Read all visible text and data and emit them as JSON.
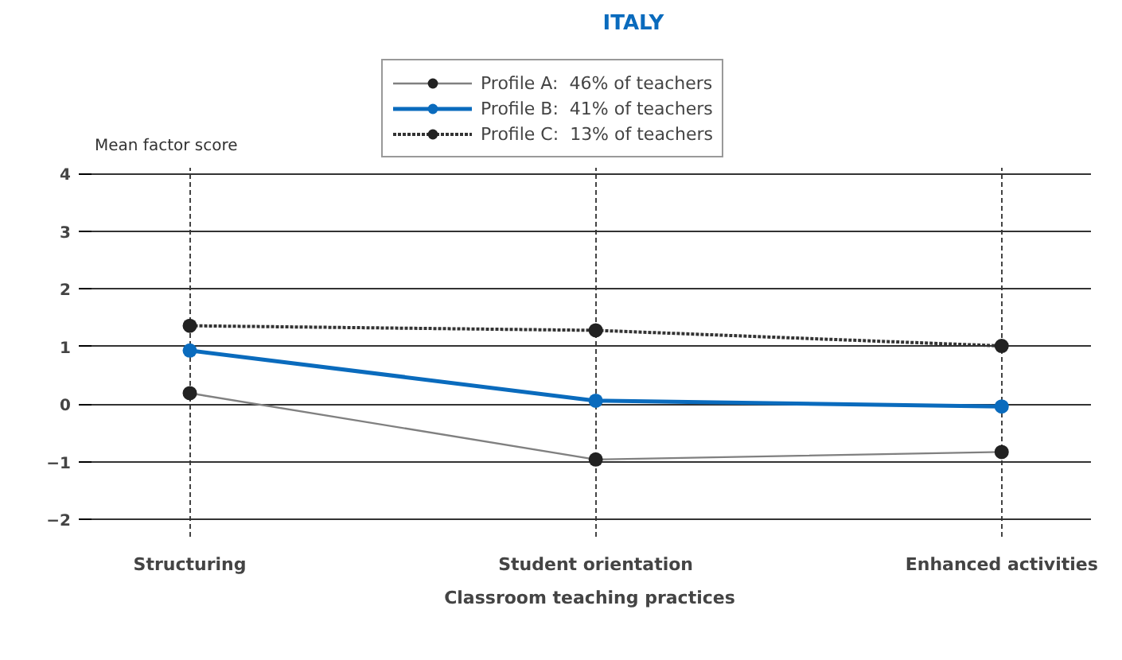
{
  "chart_data": {
    "type": "line",
    "title": "ITALY",
    "xlabel": "Classroom teaching practices",
    "ylabel": "Mean factor score",
    "categories": [
      "Structuring",
      "Student orientation",
      "Enhanced activities"
    ],
    "series": [
      {
        "name": "Profile A:  46% of teachers",
        "color": "#808080",
        "line_style": "solid",
        "values": [
          0.19,
          -0.96,
          -0.83
        ]
      },
      {
        "name": "Profile B:  41% of teachers",
        "color": "#0a6bbd",
        "line_style": "solid",
        "values": [
          0.93,
          0.06,
          -0.04
        ]
      },
      {
        "name": "Profile C:  13% of teachers",
        "color": "#333333",
        "line_style": "dotted",
        "values": [
          1.36,
          1.28,
          1.01
        ]
      }
    ],
    "ylim": [
      -2.3,
      4.1
    ],
    "yticks": [
      -2,
      -1,
      0,
      1,
      2,
      3,
      4
    ],
    "grid": true,
    "legend": "top",
    "marker": "circle"
  }
}
